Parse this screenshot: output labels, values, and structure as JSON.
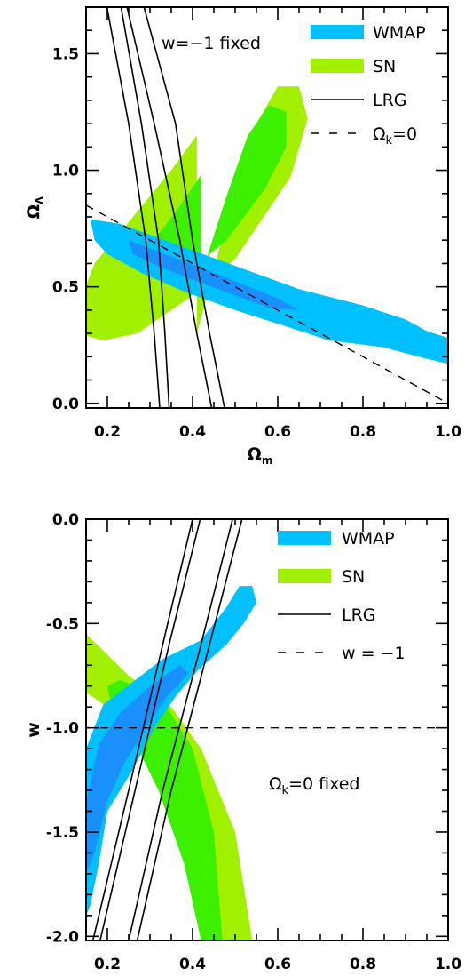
{
  "colors": {
    "wmap": "#00c0ff",
    "wmap_inner": "#1a90ff",
    "sn": "#a0f000",
    "sn_inner": "#3cf000",
    "line": "#000000"
  },
  "chart_data": [
    {
      "type": "contour",
      "xlabel": "Ω_m",
      "ylabel": "Ω_Λ",
      "xlim": [
        0.15,
        1.0
      ],
      "ylim": [
        -0.02,
        1.7
      ],
      "xticks": [
        0.2,
        0.4,
        0.6,
        0.8,
        1.0
      ],
      "xtick_labels": [
        "0.2",
        "0.4",
        "0.6",
        "0.8",
        "1.0"
      ],
      "yticks": [
        0.0,
        0.5,
        1.0,
        1.5
      ],
      "ytick_labels": [
        "0.0",
        "0.5",
        "1.0",
        "1.5"
      ],
      "annotation": "w=−1 fixed",
      "legend_position": "top-right",
      "legend": [
        {
          "key": "wmap",
          "label": "WMAP",
          "style": "band"
        },
        {
          "key": "sn",
          "label": "SN",
          "style": "band"
        },
        {
          "key": "lrg",
          "label": "LRG",
          "style": "solid"
        },
        {
          "key": "flat",
          "label": "Ω_k=0",
          "style": "dashed"
        }
      ],
      "series": {
        "sn_outer": [
          [
            0.41,
            0.3
          ],
          [
            0.49,
            0.85
          ],
          [
            0.55,
            1.2
          ],
          [
            0.6,
            1.36
          ],
          [
            0.65,
            1.36
          ],
          [
            0.67,
            1.22
          ],
          [
            0.63,
            0.97
          ],
          [
            0.5,
            0.62
          ],
          [
            0.39,
            0.45
          ],
          [
            0.27,
            0.3
          ],
          [
            0.19,
            0.27
          ],
          [
            0.15,
            0.29
          ],
          [
            0.14,
            0.46
          ],
          [
            0.17,
            0.6
          ],
          [
            0.26,
            0.8
          ],
          [
            0.35,
            1.0
          ],
          [
            0.41,
            1.15
          ]
        ],
        "sn_inner": [
          [
            0.42,
            0.55
          ],
          [
            0.48,
            0.89
          ],
          [
            0.53,
            1.15
          ],
          [
            0.58,
            1.28
          ],
          [
            0.62,
            1.25
          ],
          [
            0.62,
            1.1
          ],
          [
            0.57,
            0.92
          ],
          [
            0.48,
            0.7
          ],
          [
            0.4,
            0.58
          ],
          [
            0.32,
            0.53
          ],
          [
            0.28,
            0.56
          ],
          [
            0.3,
            0.68
          ],
          [
            0.36,
            0.82
          ],
          [
            0.42,
            0.98
          ]
        ],
        "wmap_outer": [
          [
            0.16,
            0.79
          ],
          [
            0.23,
            0.77
          ],
          [
            0.35,
            0.69
          ],
          [
            0.5,
            0.59
          ],
          [
            0.65,
            0.49
          ],
          [
            0.8,
            0.42
          ],
          [
            0.9,
            0.36
          ],
          [
            0.95,
            0.31
          ],
          [
            1.0,
            0.28
          ],
          [
            1.0,
            0.17
          ],
          [
            0.93,
            0.2
          ],
          [
            0.85,
            0.24
          ],
          [
            0.72,
            0.27
          ],
          [
            0.62,
            0.33
          ],
          [
            0.5,
            0.4
          ],
          [
            0.38,
            0.48
          ],
          [
            0.28,
            0.56
          ],
          [
            0.2,
            0.64
          ],
          [
            0.17,
            0.7
          ]
        ],
        "wmap_inner": [
          [
            0.25,
            0.7
          ],
          [
            0.32,
            0.65
          ],
          [
            0.45,
            0.56
          ],
          [
            0.6,
            0.45
          ],
          [
            0.65,
            0.4
          ],
          [
            0.58,
            0.41
          ],
          [
            0.46,
            0.49
          ],
          [
            0.33,
            0.58
          ],
          [
            0.26,
            0.64
          ]
        ],
        "lrg_lines": [
          [
            [
              0.199,
              1.7
            ],
            [
              0.25,
              1.2
            ],
            [
              0.29,
              0.7
            ],
            [
              0.31,
              0.3
            ],
            [
              0.323,
              -0.02
            ]
          ],
          [
            [
              0.232,
              1.7
            ],
            [
              0.28,
              1.2
            ],
            [
              0.32,
              0.7
            ],
            [
              0.335,
              0.3
            ],
            [
              0.345,
              -0.02
            ]
          ],
          [
            [
              0.246,
              1.7
            ],
            [
              0.31,
              1.2
            ],
            [
              0.37,
              0.7
            ],
            [
              0.41,
              0.3
            ],
            [
              0.445,
              -0.02
            ]
          ],
          [
            [
              0.286,
              1.7
            ],
            [
              0.36,
              1.2
            ],
            [
              0.4,
              0.7
            ],
            [
              0.44,
              0.3
            ],
            [
              0.475,
              -0.02
            ]
          ]
        ],
        "flat_line": [
          [
            0.15,
            0.85
          ],
          [
            1.0,
            -0.0
          ]
        ]
      }
    },
    {
      "type": "contour",
      "xlabel": "Ω_m",
      "ylabel": "w",
      "xlim": [
        0.15,
        1.0
      ],
      "ylim": [
        -2.02,
        0.0
      ],
      "xticks": [
        0.2,
        0.4,
        0.6,
        0.8,
        1.0
      ],
      "xtick_labels": [
        "0.2",
        "0.4",
        "0.6",
        "0.8",
        "1.0"
      ],
      "yticks": [
        -2.0,
        -1.5,
        -1.0,
        -0.5,
        0.0
      ],
      "ytick_labels": [
        "-2.0",
        "-1.5",
        "-1.0",
        "-0.5",
        "0.0"
      ],
      "annotation": "Ω_k=0 fixed",
      "legend_position": "top-right",
      "legend": [
        {
          "key": "wmap",
          "label": "WMAP",
          "style": "band"
        },
        {
          "key": "sn",
          "label": "SN",
          "style": "band"
        },
        {
          "key": "lrg",
          "label": "LRG",
          "style": "solid"
        },
        {
          "key": "wline",
          "label": "w = −1",
          "style": "dashed"
        }
      ],
      "series": {
        "sn_outer": [
          [
            0.15,
            -0.55
          ],
          [
            0.25,
            -0.75
          ],
          [
            0.35,
            -0.9
          ],
          [
            0.42,
            -1.1
          ],
          [
            0.5,
            -1.5
          ],
          [
            0.54,
            -2.02
          ],
          [
            0.47,
            -2.02
          ],
          [
            0.43,
            -1.7
          ],
          [
            0.37,
            -1.35
          ],
          [
            0.28,
            -1.1
          ],
          [
            0.2,
            -0.9
          ],
          [
            0.15,
            -0.83
          ]
        ],
        "sn_inner": [
          [
            0.23,
            -0.77
          ],
          [
            0.29,
            -0.82
          ],
          [
            0.34,
            -0.9
          ],
          [
            0.4,
            -1.1
          ],
          [
            0.45,
            -1.5
          ],
          [
            0.47,
            -2.02
          ],
          [
            0.42,
            -2.02
          ],
          [
            0.38,
            -1.65
          ],
          [
            0.32,
            -1.3
          ],
          [
            0.26,
            -1.05
          ],
          [
            0.21,
            -0.9
          ],
          [
            0.2,
            -0.8
          ]
        ],
        "wmap_outer": [
          [
            0.15,
            -1.1
          ],
          [
            0.19,
            -0.89
          ],
          [
            0.26,
            -0.78
          ],
          [
            0.33,
            -0.67
          ],
          [
            0.42,
            -0.58
          ],
          [
            0.48,
            -0.42
          ],
          [
            0.51,
            -0.32
          ],
          [
            0.54,
            -0.32
          ],
          [
            0.55,
            -0.4
          ],
          [
            0.52,
            -0.5
          ],
          [
            0.48,
            -0.6
          ],
          [
            0.41,
            -0.73
          ],
          [
            0.36,
            -0.85
          ],
          [
            0.31,
            -1.0
          ],
          [
            0.26,
            -1.2
          ],
          [
            0.2,
            -1.4
          ],
          [
            0.18,
            -1.65
          ],
          [
            0.16,
            -1.85
          ],
          [
            0.15,
            -1.9
          ]
        ],
        "wmap_inner": [
          [
            0.18,
            -1.08
          ],
          [
            0.23,
            -0.93
          ],
          [
            0.3,
            -0.8
          ],
          [
            0.37,
            -0.7
          ],
          [
            0.39,
            -0.74
          ],
          [
            0.34,
            -0.85
          ],
          [
            0.29,
            -1.0
          ],
          [
            0.24,
            -1.17
          ],
          [
            0.2,
            -1.35
          ],
          [
            0.17,
            -1.6
          ],
          [
            0.15,
            -1.7
          ],
          [
            0.15,
            -1.35
          ]
        ],
        "lrg_lines": [
          [
            [
              0.166,
              -2.02
            ],
            [
              0.25,
              -1.3
            ],
            [
              0.33,
              -0.6
            ],
            [
              0.4,
              0.0
            ]
          ],
          [
            [
              0.183,
              -2.02
            ],
            [
              0.265,
              -1.3
            ],
            [
              0.345,
              -0.6
            ],
            [
              0.418,
              0.0
            ]
          ],
          [
            [
              0.25,
              -2.02
            ],
            [
              0.33,
              -1.3
            ],
            [
              0.42,
              -0.6
            ],
            [
              0.494,
              0.0
            ]
          ],
          [
            [
              0.27,
              -2.02
            ],
            [
              0.35,
              -1.3
            ],
            [
              0.44,
              -0.6
            ],
            [
              0.516,
              0.0
            ]
          ]
        ],
        "w_line": [
          [
            0.15,
            -1.0
          ],
          [
            1.0,
            -1.0
          ]
        ]
      }
    }
  ]
}
